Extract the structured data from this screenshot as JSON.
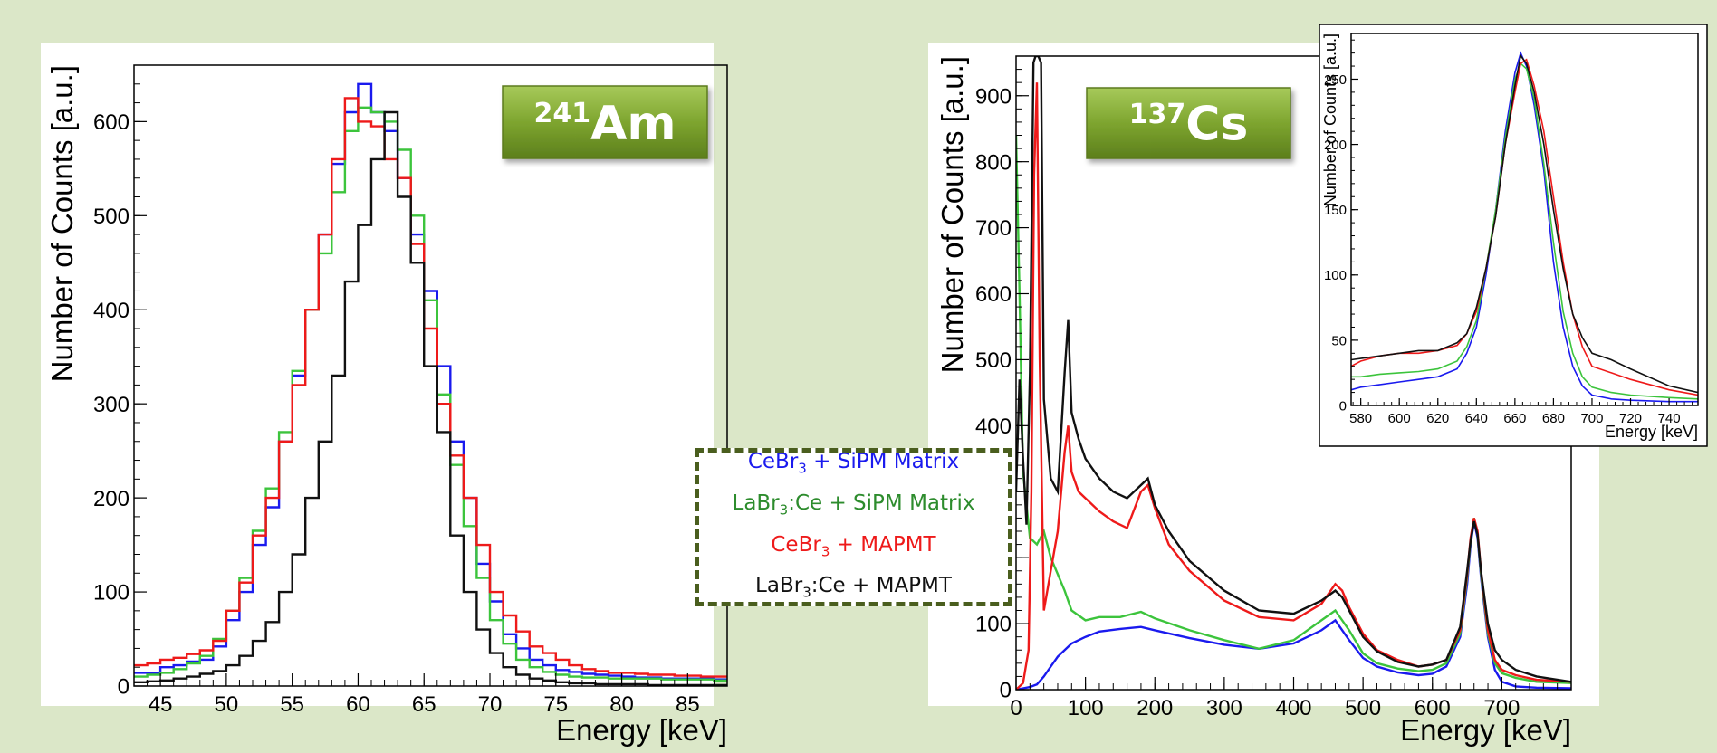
{
  "chart_data": [
    {
      "id": "am241",
      "type": "line",
      "title": "",
      "badge": {
        "mass": "241",
        "element": "Am"
      },
      "xlabel": "Energy [keV]",
      "ylabel": "Number of Counts [a.u.]",
      "xlim": [
        43,
        88
      ],
      "ylim": [
        0,
        660
      ],
      "xticks": [
        45,
        50,
        55,
        60,
        65,
        70,
        75,
        80,
        85
      ],
      "yticks": [
        0,
        100,
        200,
        300,
        400,
        500,
        600
      ],
      "grid": false,
      "step": true,
      "series": [
        {
          "color": "#1a1aee",
          "x": [
            43,
            44,
            45,
            46,
            47,
            48,
            49,
            50,
            51,
            52,
            53,
            54,
            55,
            56,
            57,
            58,
            59,
            60,
            61,
            62,
            63,
            64,
            65,
            66,
            67,
            68,
            69,
            70,
            71,
            72,
            73,
            74,
            75,
            76,
            77,
            78,
            79,
            80,
            81,
            82,
            83,
            84,
            85,
            86,
            87,
            88
          ],
          "y": [
            14,
            14,
            20,
            22,
            26,
            28,
            42,
            70,
            100,
            150,
            190,
            260,
            330,
            400,
            480,
            555,
            610,
            640,
            610,
            590,
            540,
            480,
            420,
            340,
            260,
            200,
            130,
            90,
            55,
            40,
            28,
            22,
            17,
            15,
            13,
            12,
            11,
            10,
            9,
            9,
            8,
            8,
            8,
            8,
            7,
            7
          ]
        },
        {
          "color": "#3cc43c",
          "x": [
            43,
            44,
            45,
            46,
            47,
            48,
            49,
            50,
            51,
            52,
            53,
            54,
            55,
            56,
            57,
            58,
            59,
            60,
            61,
            62,
            63,
            64,
            65,
            66,
            67,
            68,
            69,
            70,
            71,
            72,
            73,
            74,
            75,
            76,
            77,
            78,
            79,
            80,
            81,
            82,
            83,
            84,
            85,
            86,
            87,
            88
          ],
          "y": [
            10,
            12,
            14,
            18,
            24,
            32,
            50,
            80,
            115,
            165,
            210,
            270,
            335,
            400,
            460,
            525,
            590,
            615,
            610,
            600,
            570,
            500,
            410,
            310,
            235,
            170,
            115,
            70,
            45,
            28,
            20,
            15,
            12,
            10,
            9,
            9,
            8,
            8,
            8,
            8,
            7,
            7,
            7,
            7,
            6,
            6
          ]
        },
        {
          "color": "#ee1a1a",
          "x": [
            43,
            44,
            45,
            46,
            47,
            48,
            49,
            50,
            51,
            52,
            53,
            54,
            55,
            56,
            57,
            58,
            59,
            60,
            61,
            62,
            63,
            64,
            65,
            66,
            67,
            68,
            69,
            70,
            71,
            72,
            73,
            74,
            75,
            76,
            77,
            78,
            79,
            80,
            81,
            82,
            83,
            84,
            85,
            86,
            87,
            88
          ],
          "y": [
            22,
            24,
            28,
            30,
            34,
            38,
            48,
            80,
            110,
            160,
            200,
            260,
            320,
            400,
            480,
            560,
            625,
            600,
            595,
            560,
            540,
            470,
            380,
            300,
            245,
            200,
            150,
            100,
            75,
            58,
            42,
            35,
            28,
            22,
            18,
            16,
            14,
            14,
            13,
            12,
            12,
            11,
            11,
            10,
            10,
            10
          ]
        },
        {
          "color": "#111111",
          "x": [
            43,
            44,
            45,
            46,
            47,
            48,
            49,
            50,
            51,
            52,
            53,
            54,
            55,
            56,
            57,
            58,
            59,
            60,
            61,
            62,
            63,
            64,
            65,
            66,
            67,
            68,
            69,
            70,
            71,
            72,
            73,
            74,
            75,
            76,
            77,
            78,
            79,
            80,
            81,
            82,
            83,
            84,
            85,
            86,
            87,
            88
          ],
          "y": [
            4,
            5,
            6,
            8,
            10,
            13,
            16,
            22,
            32,
            48,
            68,
            100,
            140,
            200,
            260,
            330,
            430,
            490,
            560,
            610,
            520,
            450,
            340,
            270,
            160,
            100,
            60,
            35,
            20,
            12,
            8,
            6,
            4,
            3,
            3,
            2,
            2,
            2,
            2,
            1,
            1,
            1,
            1,
            1,
            1,
            1
          ]
        }
      ]
    },
    {
      "id": "cs137",
      "type": "line",
      "title": "",
      "badge": {
        "mass": "137",
        "element": "Cs"
      },
      "xlabel": "Energy [keV]",
      "ylabel": "Number of Counts [a.u.]",
      "xlim": [
        0,
        800
      ],
      "ylim": [
        0,
        960
      ],
      "xticks": [
        0,
        100,
        200,
        300,
        400,
        500,
        600,
        700
      ],
      "yticks": [
        0,
        100,
        200,
        300,
        400,
        500,
        600,
        700,
        800,
        900
      ],
      "grid": false,
      "series": [
        {
          "color": "#1a1aee",
          "x": [
            0,
            10,
            20,
            30,
            40,
            50,
            60,
            80,
            100,
            120,
            150,
            180,
            200,
            250,
            300,
            350,
            400,
            440,
            460,
            480,
            500,
            520,
            550,
            580,
            600,
            620,
            640,
            650,
            655,
            660,
            665,
            670,
            680,
            690,
            700,
            720,
            750,
            800
          ],
          "y": [
            0,
            2,
            4,
            8,
            20,
            35,
            50,
            70,
            80,
            88,
            92,
            95,
            90,
            78,
            68,
            62,
            70,
            90,
            105,
            75,
            48,
            35,
            26,
            22,
            24,
            35,
            80,
            160,
            220,
            255,
            230,
            170,
            80,
            30,
            12,
            5,
            3,
            2
          ]
        },
        {
          "color": "#3cc43c",
          "x": [
            0,
            5,
            10,
            20,
            30,
            40,
            50,
            60,
            70,
            80,
            100,
            120,
            150,
            180,
            200,
            250,
            300,
            350,
            400,
            440,
            460,
            480,
            500,
            520,
            550,
            580,
            600,
            620,
            640,
            650,
            655,
            660,
            665,
            670,
            680,
            690,
            700,
            720,
            750,
            800
          ],
          "y": [
            840,
            600,
            330,
            230,
            220,
            240,
            200,
            175,
            150,
            120,
            105,
            110,
            110,
            118,
            108,
            90,
            75,
            62,
            75,
            105,
            120,
            90,
            55,
            40,
            32,
            28,
            30,
            40,
            85,
            170,
            225,
            260,
            235,
            175,
            85,
            40,
            25,
            18,
            12,
            10
          ]
        },
        {
          "color": "#ee1a1a",
          "x": [
            0,
            10,
            18,
            22,
            26,
            30,
            34,
            40,
            50,
            60,
            70,
            75,
            80,
            90,
            100,
            120,
            140,
            160,
            180,
            190,
            200,
            220,
            250,
            300,
            350,
            400,
            440,
            460,
            470,
            480,
            500,
            520,
            550,
            580,
            600,
            620,
            640,
            650,
            655,
            660,
            665,
            670,
            680,
            690,
            700,
            720,
            750,
            800
          ],
          "y": [
            0,
            10,
            60,
            300,
            780,
            920,
            500,
            120,
            180,
            240,
            360,
            400,
            330,
            300,
            290,
            270,
            255,
            245,
            300,
            310,
            275,
            220,
            180,
            135,
            110,
            105,
            130,
            160,
            150,
            125,
            85,
            60,
            45,
            35,
            38,
            45,
            90,
            175,
            230,
            260,
            240,
            180,
            90,
            45,
            30,
            22,
            15,
            12
          ]
        },
        {
          "color": "#111111",
          "x": [
            0,
            5,
            10,
            15,
            20,
            25,
            28,
            32,
            36,
            40,
            50,
            60,
            70,
            75,
            80,
            90,
            100,
            120,
            140,
            160,
            180,
            190,
            200,
            220,
            250,
            300,
            350,
            400,
            440,
            460,
            470,
            480,
            500,
            520,
            550,
            580,
            600,
            620,
            640,
            650,
            655,
            660,
            665,
            670,
            680,
            690,
            700,
            720,
            750,
            800
          ],
          "y": [
            300,
            470,
            350,
            250,
            480,
            950,
            960,
            960,
            950,
            440,
            320,
            300,
            480,
            560,
            420,
            380,
            350,
            320,
            300,
            290,
            310,
            320,
            280,
            240,
            195,
            150,
            120,
            115,
            135,
            150,
            140,
            120,
            80,
            58,
            42,
            35,
            38,
            45,
            95,
            180,
            225,
            255,
            235,
            180,
            100,
            60,
            45,
            30,
            20,
            12
          ]
        }
      ]
    },
    {
      "id": "cs137-inset",
      "type": "line",
      "title": "",
      "xlabel": "Energy [keV]",
      "ylabel": "Number of Counts [a.u.]",
      "xlim": [
        575,
        755
      ],
      "ylim": [
        0,
        285
      ],
      "xticks": [
        580,
        600,
        620,
        640,
        660,
        680,
        700,
        720,
        740
      ],
      "yticks": [
        0,
        50,
        100,
        150,
        200,
        250
      ],
      "grid": false,
      "series": [
        {
          "color": "#1a1aee",
          "x": [
            575,
            580,
            590,
            600,
            610,
            620,
            630,
            635,
            640,
            645,
            650,
            655,
            660,
            663,
            666,
            670,
            675,
            680,
            685,
            690,
            695,
            700,
            710,
            720,
            740,
            755
          ],
          "y": [
            12,
            14,
            16,
            18,
            20,
            22,
            28,
            40,
            60,
            100,
            150,
            210,
            255,
            270,
            260,
            230,
            180,
            110,
            60,
            30,
            15,
            8,
            5,
            4,
            3,
            3
          ]
        },
        {
          "color": "#3cc43c",
          "x": [
            575,
            580,
            590,
            600,
            610,
            620,
            630,
            635,
            640,
            645,
            650,
            655,
            660,
            663,
            666,
            670,
            675,
            680,
            685,
            690,
            695,
            700,
            710,
            720,
            740,
            755
          ],
          "y": [
            22,
            22,
            24,
            25,
            26,
            28,
            34,
            45,
            65,
            105,
            150,
            205,
            250,
            262,
            258,
            235,
            185,
            125,
            72,
            40,
            22,
            14,
            10,
            8,
            6,
            5
          ]
        },
        {
          "color": "#ee1a1a",
          "x": [
            575,
            580,
            590,
            600,
            610,
            620,
            630,
            635,
            640,
            645,
            650,
            655,
            660,
            663,
            666,
            670,
            675,
            680,
            685,
            690,
            695,
            700,
            710,
            720,
            740,
            755
          ],
          "y": [
            30,
            34,
            38,
            40,
            40,
            42,
            46,
            55,
            72,
            105,
            145,
            200,
            240,
            262,
            265,
            245,
            210,
            160,
            110,
            70,
            45,
            30,
            25,
            20,
            12,
            8
          ]
        },
        {
          "color": "#111111",
          "x": [
            575,
            580,
            590,
            600,
            610,
            620,
            630,
            635,
            640,
            645,
            650,
            655,
            660,
            663,
            666,
            670,
            675,
            680,
            685,
            690,
            695,
            700,
            710,
            720,
            740,
            755
          ],
          "y": [
            35,
            36,
            38,
            40,
            42,
            42,
            48,
            55,
            75,
            105,
            145,
            200,
            245,
            268,
            262,
            240,
            200,
            150,
            105,
            70,
            52,
            40,
            35,
            28,
            15,
            10
          ]
        }
      ]
    }
  ],
  "legend": {
    "entries": [
      {
        "color": "#1a1aee",
        "base": "CeBr",
        "sub": "3",
        "rest": " + SiPM Matrix"
      },
      {
        "color": "#2d8c2d",
        "base": "LaBr",
        "sub": "3",
        "rest": ":Ce + SiPM Matrix"
      },
      {
        "color": "#ee1a1a",
        "base": "CeBr",
        "sub": "3",
        "rest": " + MAPMT"
      },
      {
        "color": "#111111",
        "base": "LaBr",
        "sub": "3",
        "rest": ":Ce + MAPMT"
      }
    ]
  },
  "colors": {
    "background": "#dbe7c8",
    "badge_fill": "#7da330",
    "badge_text": "#ffffff",
    "legend_border": "#4a5e1e"
  }
}
